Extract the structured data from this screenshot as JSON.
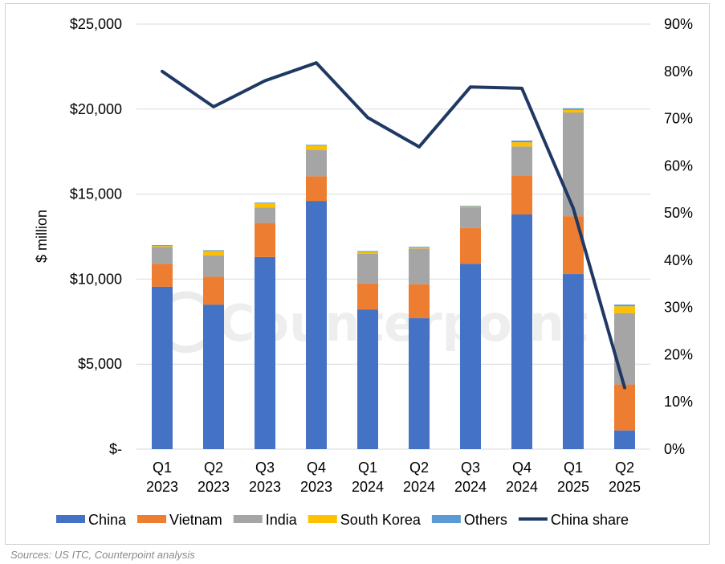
{
  "chart_data": {
    "type": "bar",
    "stacked": true,
    "categories": [
      [
        "Q1",
        "2023"
      ],
      [
        "Q2",
        "2023"
      ],
      [
        "Q3",
        "2023"
      ],
      [
        "Q4",
        "2023"
      ],
      [
        "Q1",
        "2024"
      ],
      [
        "Q2",
        "2024"
      ],
      [
        "Q3",
        "2024"
      ],
      [
        "Q4",
        "2024"
      ],
      [
        "Q1",
        "2025"
      ],
      [
        "Q2",
        "2025"
      ]
    ],
    "series": [
      {
        "name": "China",
        "color": "#4472C4",
        "values": [
          9550,
          8500,
          11300,
          14600,
          8200,
          7700,
          10900,
          13800,
          10300,
          1100
        ]
      },
      {
        "name": "Vietnam",
        "color": "#ED7D31",
        "values": [
          1350,
          1650,
          2000,
          1450,
          1550,
          2000,
          2100,
          2300,
          3400,
          2700
        ]
      },
      {
        "name": "India",
        "color": "#A5A5A5",
        "values": [
          1000,
          1250,
          900,
          1550,
          1750,
          2100,
          1200,
          1700,
          6100,
          4200
        ]
      },
      {
        "name": "South Korea",
        "color": "#FFC000",
        "values": [
          50,
          250,
          250,
          250,
          100,
          50,
          50,
          250,
          150,
          400
        ]
      },
      {
        "name": "Others",
        "color": "#5B9BD5",
        "values": [
          50,
          50,
          50,
          50,
          50,
          50,
          50,
          100,
          100,
          100
        ]
      }
    ],
    "line_series": {
      "name": "China share",
      "color": "#1F3864",
      "axis": "right",
      "values": [
        0.8,
        0.725,
        0.78,
        0.818,
        0.702,
        0.64,
        0.767,
        0.764,
        0.51,
        0.13
      ]
    },
    "ylabel": "$ million",
    "ylim": [
      0,
      25000
    ],
    "y_ticks": [
      0,
      5000,
      10000,
      15000,
      20000,
      25000
    ],
    "y_tick_labels": [
      "$-",
      "$5,000",
      "$10,000",
      "$15,000",
      "$20,000",
      "$25,000"
    ],
    "y2lim": [
      0,
      0.9
    ],
    "y2_ticks": [
      0,
      0.1,
      0.2,
      0.3,
      0.4,
      0.5,
      0.6,
      0.7,
      0.8,
      0.9
    ],
    "y2_tick_labels": [
      "0%",
      "10%",
      "20%",
      "30%",
      "40%",
      "50%",
      "60%",
      "70%",
      "80%",
      "90%"
    ],
    "grid": true,
    "legend": [
      "China",
      "Vietnam",
      "India",
      "South Korea",
      "Others",
      "China share"
    ],
    "legend_position": "bottom",
    "watermark": "Counterpoint"
  },
  "source_note": "Sources: US ITC, Counterpoint analysis"
}
